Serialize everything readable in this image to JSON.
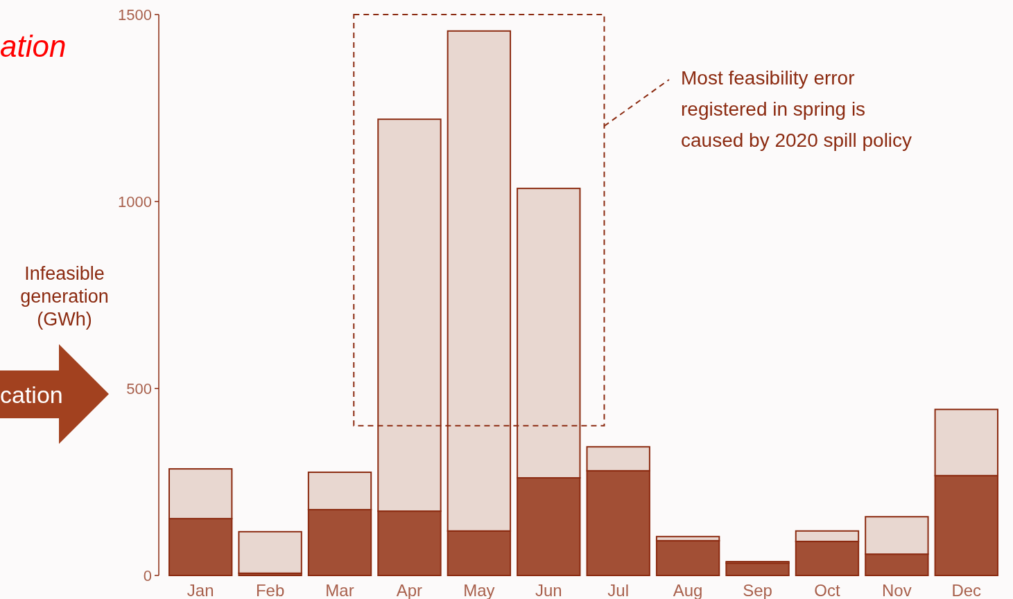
{
  "chart_data": {
    "type": "bar",
    "stacked": true,
    "ylabel": "Infeasible generation (GWh)",
    "categories": [
      "Jan",
      "Feb",
      "Mar",
      "Apr",
      "May",
      "Jun",
      "Jul",
      "Aug",
      "Sep",
      "Oct",
      "Nov",
      "Dec"
    ],
    "series": [
      {
        "color": "#a24f35",
        "values": [
          152,
          6,
          176,
          172,
          119,
          261,
          280,
          93,
          33,
          91,
          57,
          267
        ]
      },
      {
        "color": "#e8d7d0",
        "values": [
          133,
          111,
          100,
          1048,
          1337,
          774,
          64,
          11,
          4,
          28,
          100,
          177
        ]
      }
    ],
    "ylim": [
      0,
      1500
    ],
    "yticks": [
      0,
      500,
      1000,
      1500
    ],
    "annotations": [
      "ation",
      "cation",
      "Most feasibility error registered in spring is caused by 2020 spill policy"
    ]
  }
}
